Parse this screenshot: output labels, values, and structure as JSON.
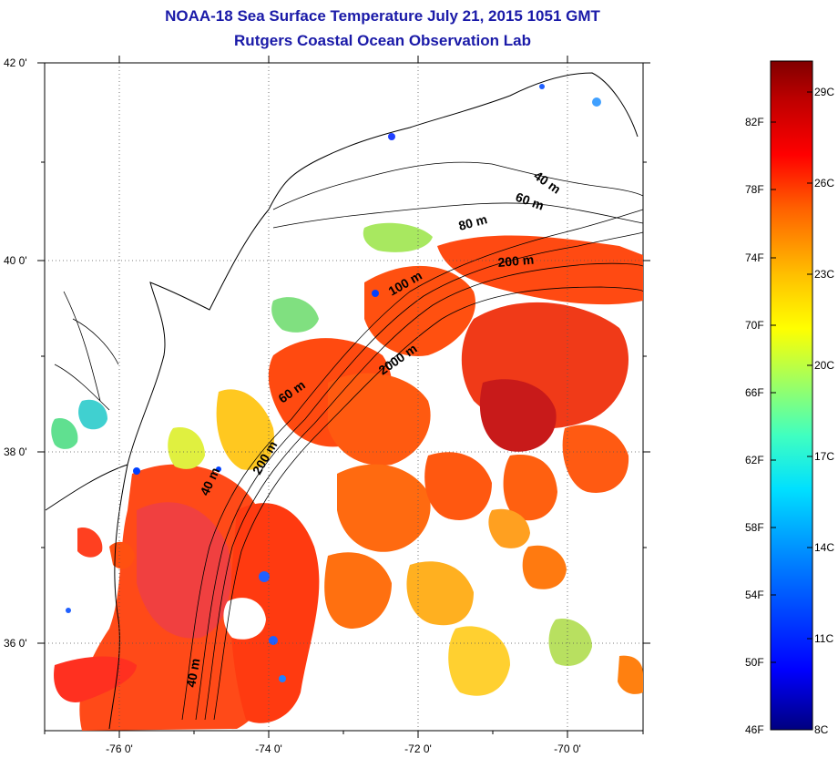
{
  "header": {
    "title": "NOAA-18 Sea Surface Temperature July 21, 2015 1051 GMT",
    "subtitle": "Rutgers Coastal Ocean Observation Lab"
  },
  "map": {
    "lat_labels": [
      "42 0'",
      "40 0'",
      "38 0'",
      "36 0'"
    ],
    "lon_labels": [
      "-76 0'",
      "-74 0'",
      "-72 0'",
      "-70 0'"
    ],
    "contour_labels": [
      "40 m",
      "60 m",
      "80 m",
      "200 m",
      "100 m",
      "2000 m",
      "60 m",
      "200 m",
      "40 m",
      "40 m"
    ]
  },
  "colorbar": {
    "fahrenheit": [
      "82F",
      "78F",
      "74F",
      "70F",
      "66F",
      "62F",
      "58F",
      "54F",
      "50F",
      "46F"
    ],
    "celsius": [
      "29C",
      "26C",
      "23C",
      "20C",
      "17C",
      "14C",
      "11C",
      "8C"
    ],
    "colors": [
      "#00007f",
      "#0000ff",
      "#0080ff",
      "#00e0ff",
      "#40ffc0",
      "#a0ff60",
      "#ffff00",
      "#ffc000",
      "#ff6000",
      "#ff0000",
      "#c00000",
      "#800000"
    ]
  }
}
